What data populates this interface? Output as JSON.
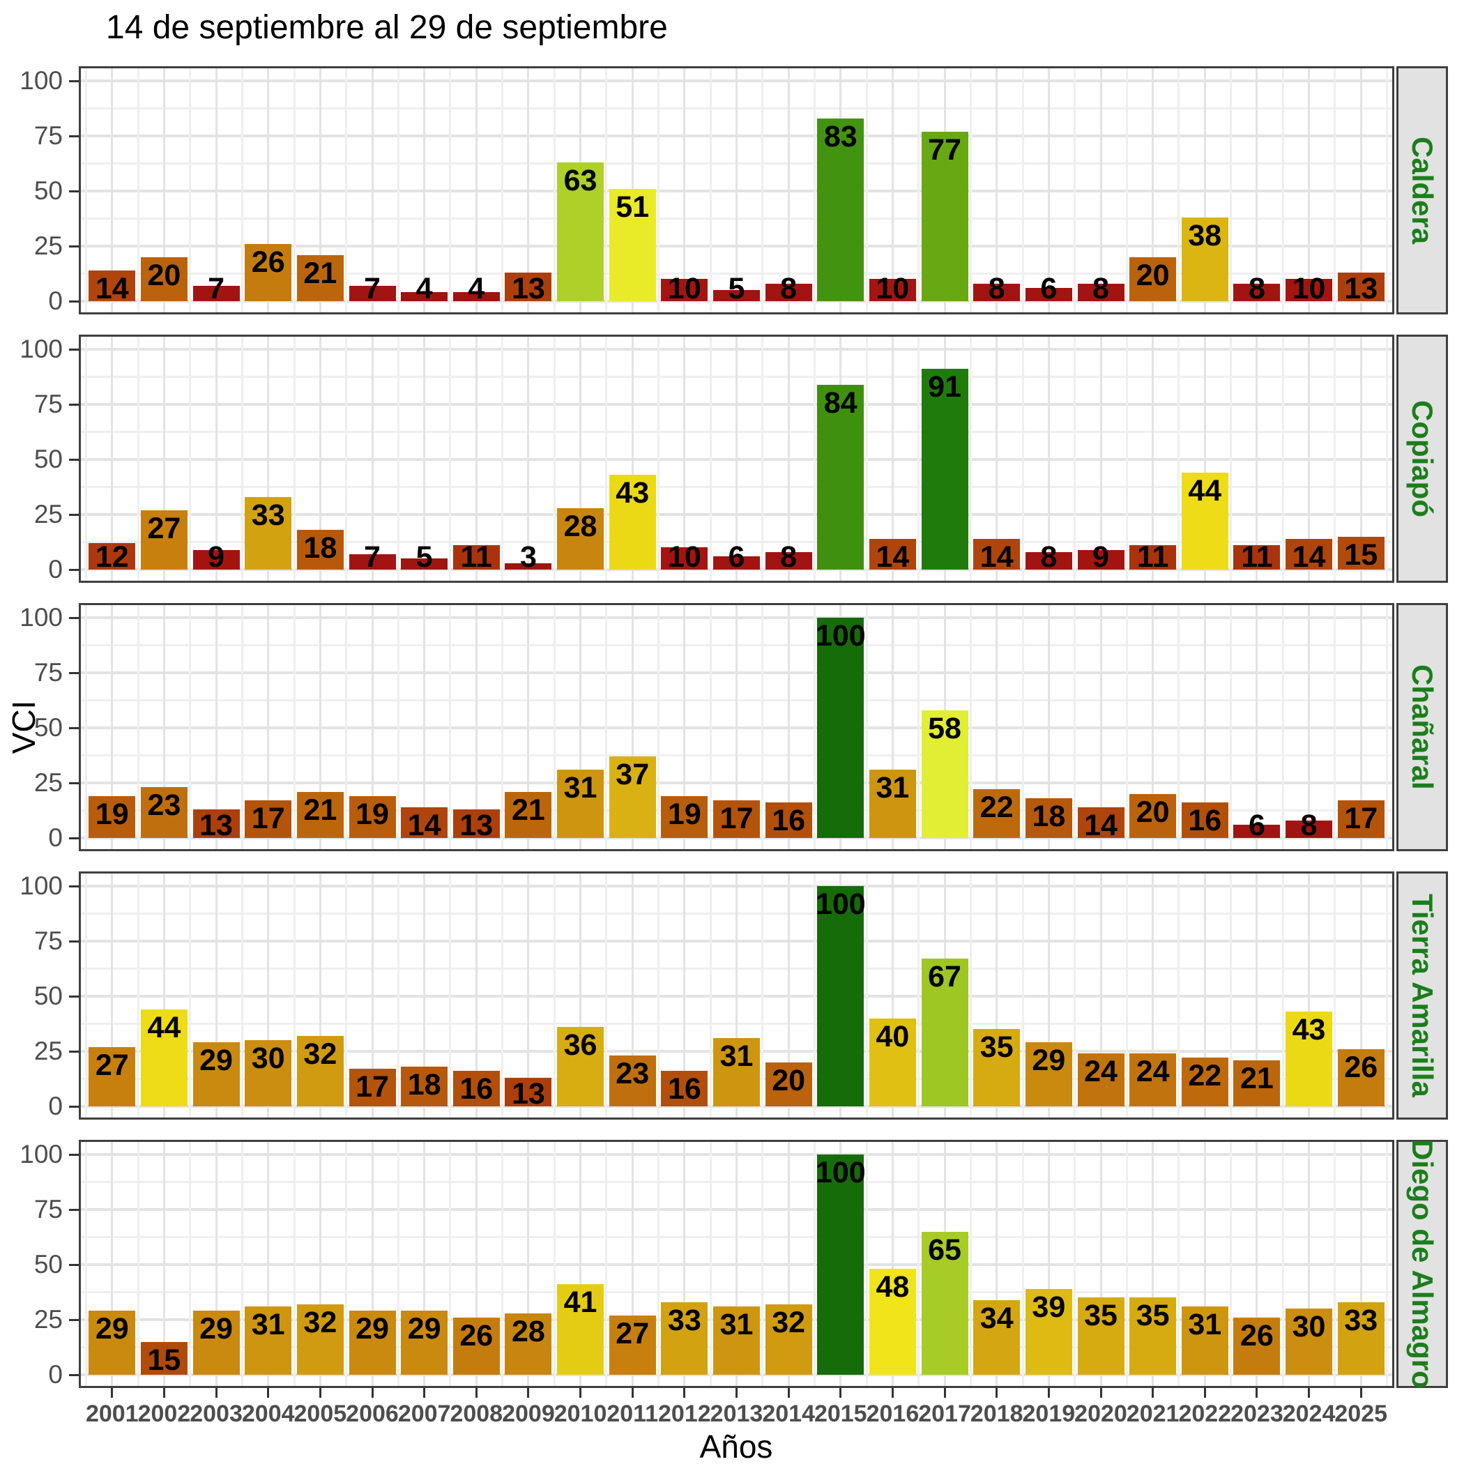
{
  "chart_data": {
    "type": "bar",
    "title": "14 de septiembre al 29 de septiembre",
    "xlabel": "Años",
    "ylabel": "VCI",
    "ylim": [
      0,
      100
    ],
    "y_ticks": [
      0,
      25,
      50,
      75,
      100
    ],
    "grid": true,
    "legend_position": "none",
    "facet_layout": "rows",
    "categories": [
      "2001",
      "2002",
      "2003",
      "2004",
      "2005",
      "2006",
      "2007",
      "2008",
      "2009",
      "2010",
      "2011",
      "2012",
      "2013",
      "2014",
      "2015",
      "2016",
      "2017",
      "2018",
      "2019",
      "2020",
      "2021",
      "2022",
      "2023",
      "2024",
      "2025"
    ],
    "series": [
      {
        "name": "Caldera",
        "values": [
          14,
          20,
          7,
          26,
          21,
          7,
          4,
          4,
          13,
          63,
          51,
          10,
          5,
          8,
          83,
          10,
          77,
          8,
          6,
          8,
          20,
          38,
          8,
          10,
          13
        ]
      },
      {
        "name": "Copiapó",
        "values": [
          12,
          27,
          9,
          33,
          18,
          7,
          5,
          11,
          3,
          28,
          43,
          10,
          6,
          8,
          84,
          14,
          91,
          14,
          8,
          9,
          11,
          44,
          11,
          14,
          15
        ]
      },
      {
        "name": "Chañaral",
        "values": [
          19,
          23,
          13,
          17,
          21,
          19,
          14,
          13,
          21,
          31,
          37,
          19,
          17,
          16,
          100,
          31,
          58,
          22,
          18,
          14,
          20,
          16,
          6,
          8,
          17
        ]
      },
      {
        "name": "Tierra Amarilla",
        "values": [
          27,
          44,
          29,
          30,
          32,
          17,
          18,
          16,
          13,
          36,
          23,
          16,
          31,
          20,
          100,
          40,
          67,
          35,
          29,
          24,
          24,
          22,
          21,
          43,
          26
        ]
      },
      {
        "name": "Diego de Almagro",
        "values": [
          29,
          15,
          29,
          31,
          32,
          29,
          29,
          26,
          28,
          41,
          27,
          33,
          31,
          32,
          100,
          48,
          65,
          34,
          39,
          35,
          35,
          31,
          26,
          30,
          33
        ]
      }
    ],
    "color_scale": {
      "description": "VCI value to bar color ramp (dark red = low, dark green = high)",
      "stops": [
        [
          0,
          "#9C1310"
        ],
        [
          10,
          "#A41411"
        ],
        [
          11,
          "#AA330D"
        ],
        [
          15,
          "#B04B0B"
        ],
        [
          20,
          "#BA620C"
        ],
        [
          25,
          "#C3770D"
        ],
        [
          30,
          "#CC8E10"
        ],
        [
          33,
          "#D2A211"
        ],
        [
          38,
          "#DBB512"
        ],
        [
          40,
          "#DFC013"
        ],
        [
          42,
          "#EBD714"
        ],
        [
          48,
          "#F0E51B"
        ],
        [
          52,
          "#E7ED2C"
        ],
        [
          58,
          "#E2EE33"
        ],
        [
          63,
          "#AFD028"
        ],
        [
          67,
          "#9EC723"
        ],
        [
          72,
          "#7FB41B"
        ],
        [
          77,
          "#68A813"
        ],
        [
          83,
          "#42930F"
        ],
        [
          86,
          "#35890D"
        ],
        [
          91,
          "#1F7B0C"
        ],
        [
          100,
          "#156C09"
        ]
      ]
    }
  },
  "colors": {
    "strip_bg": "#E2E2E2",
    "strip_text": "#1B7E1B",
    "axis_text": "#4D4D4D",
    "panel_border": "#3F3F3F",
    "grid_major": "#E3E3E3",
    "grid_minor": "#EFEFEF",
    "tick_mark": "#333333",
    "bar_label_text": "#000000",
    "title_text": "#000000"
  }
}
